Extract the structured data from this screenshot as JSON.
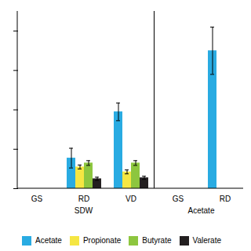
{
  "chart_data": {
    "type": "bar",
    "categories": [
      "GS",
      "RD",
      "VD",
      "GS",
      "RD"
    ],
    "series": [
      {
        "name": "Acetate",
        "color": "#29ABE2",
        "values": [
          0,
          155,
          390,
          0,
          700
        ],
        "errors": [
          0,
          50,
          45,
          0,
          120
        ]
      },
      {
        "name": "Propionate",
        "color": "#F5E642",
        "values": [
          0,
          110,
          85,
          0,
          0
        ],
        "errors": [
          0,
          10,
          10,
          0,
          0
        ]
      },
      {
        "name": "Butyrate",
        "color": "#8DC63F",
        "values": [
          0,
          130,
          130,
          0,
          0
        ],
        "errors": [
          0,
          12,
          12,
          0,
          0
        ]
      },
      {
        "name": "Valerate",
        "color": "#231F20",
        "values": [
          0,
          50,
          55,
          0,
          0
        ],
        "errors": [
          0,
          8,
          8,
          0,
          0
        ]
      }
    ],
    "ylim": [
      0,
      900
    ],
    "yticks": [
      0,
      200,
      400,
      600,
      800
    ],
    "tick_labels": "x",
    "grid": false,
    "legend": "bottom",
    "annotations": [
      {
        "text": "SDW",
        "categories": [
          "GS",
          "RD",
          "VD"
        ]
      },
      {
        "text": "Acetate",
        "categories": [
          "GS",
          "RD"
        ]
      }
    ]
  }
}
